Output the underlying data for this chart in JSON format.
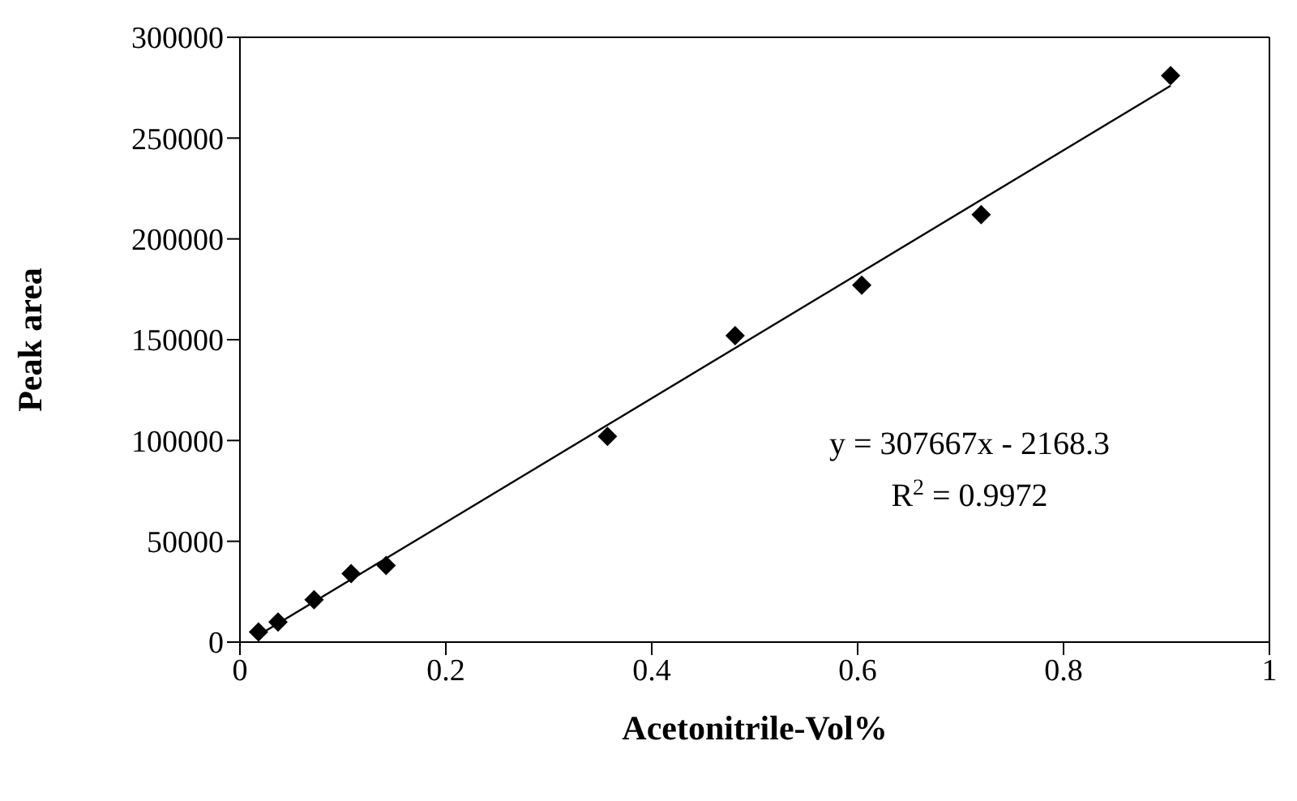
{
  "chart_data": {
    "type": "scatter",
    "xlabel": "Acetonitrile-Vol%",
    "ylabel": "Peak area",
    "xlim": [
      0,
      1
    ],
    "xticks": [
      0,
      0.2,
      0.4,
      0.6,
      0.8,
      1
    ],
    "ylim": [
      0,
      300000
    ],
    "yticks": [
      0,
      50000,
      100000,
      150000,
      200000,
      250000,
      300000
    ],
    "marker": "diamond",
    "series": [
      {
        "color": "#000000",
        "x": [
          0.018,
          0.037,
          0.072,
          0.108,
          0.142,
          0.357,
          0.481,
          0.604,
          0.72,
          0.904
        ],
        "values": [
          5000,
          10000,
          21000,
          34000,
          38000,
          102000,
          152000,
          177000,
          212000,
          281000
        ]
      },
      {
        "type": "line",
        "color": "#000000",
        "marker": "none",
        "x": [
          0.018,
          0.904
        ],
        "values": [
          3400,
          276000
        ]
      }
    ],
    "annotations": [
      "y = 307667x - 2168.3",
      "R$^{2}$ = 0.9972"
    ]
  }
}
